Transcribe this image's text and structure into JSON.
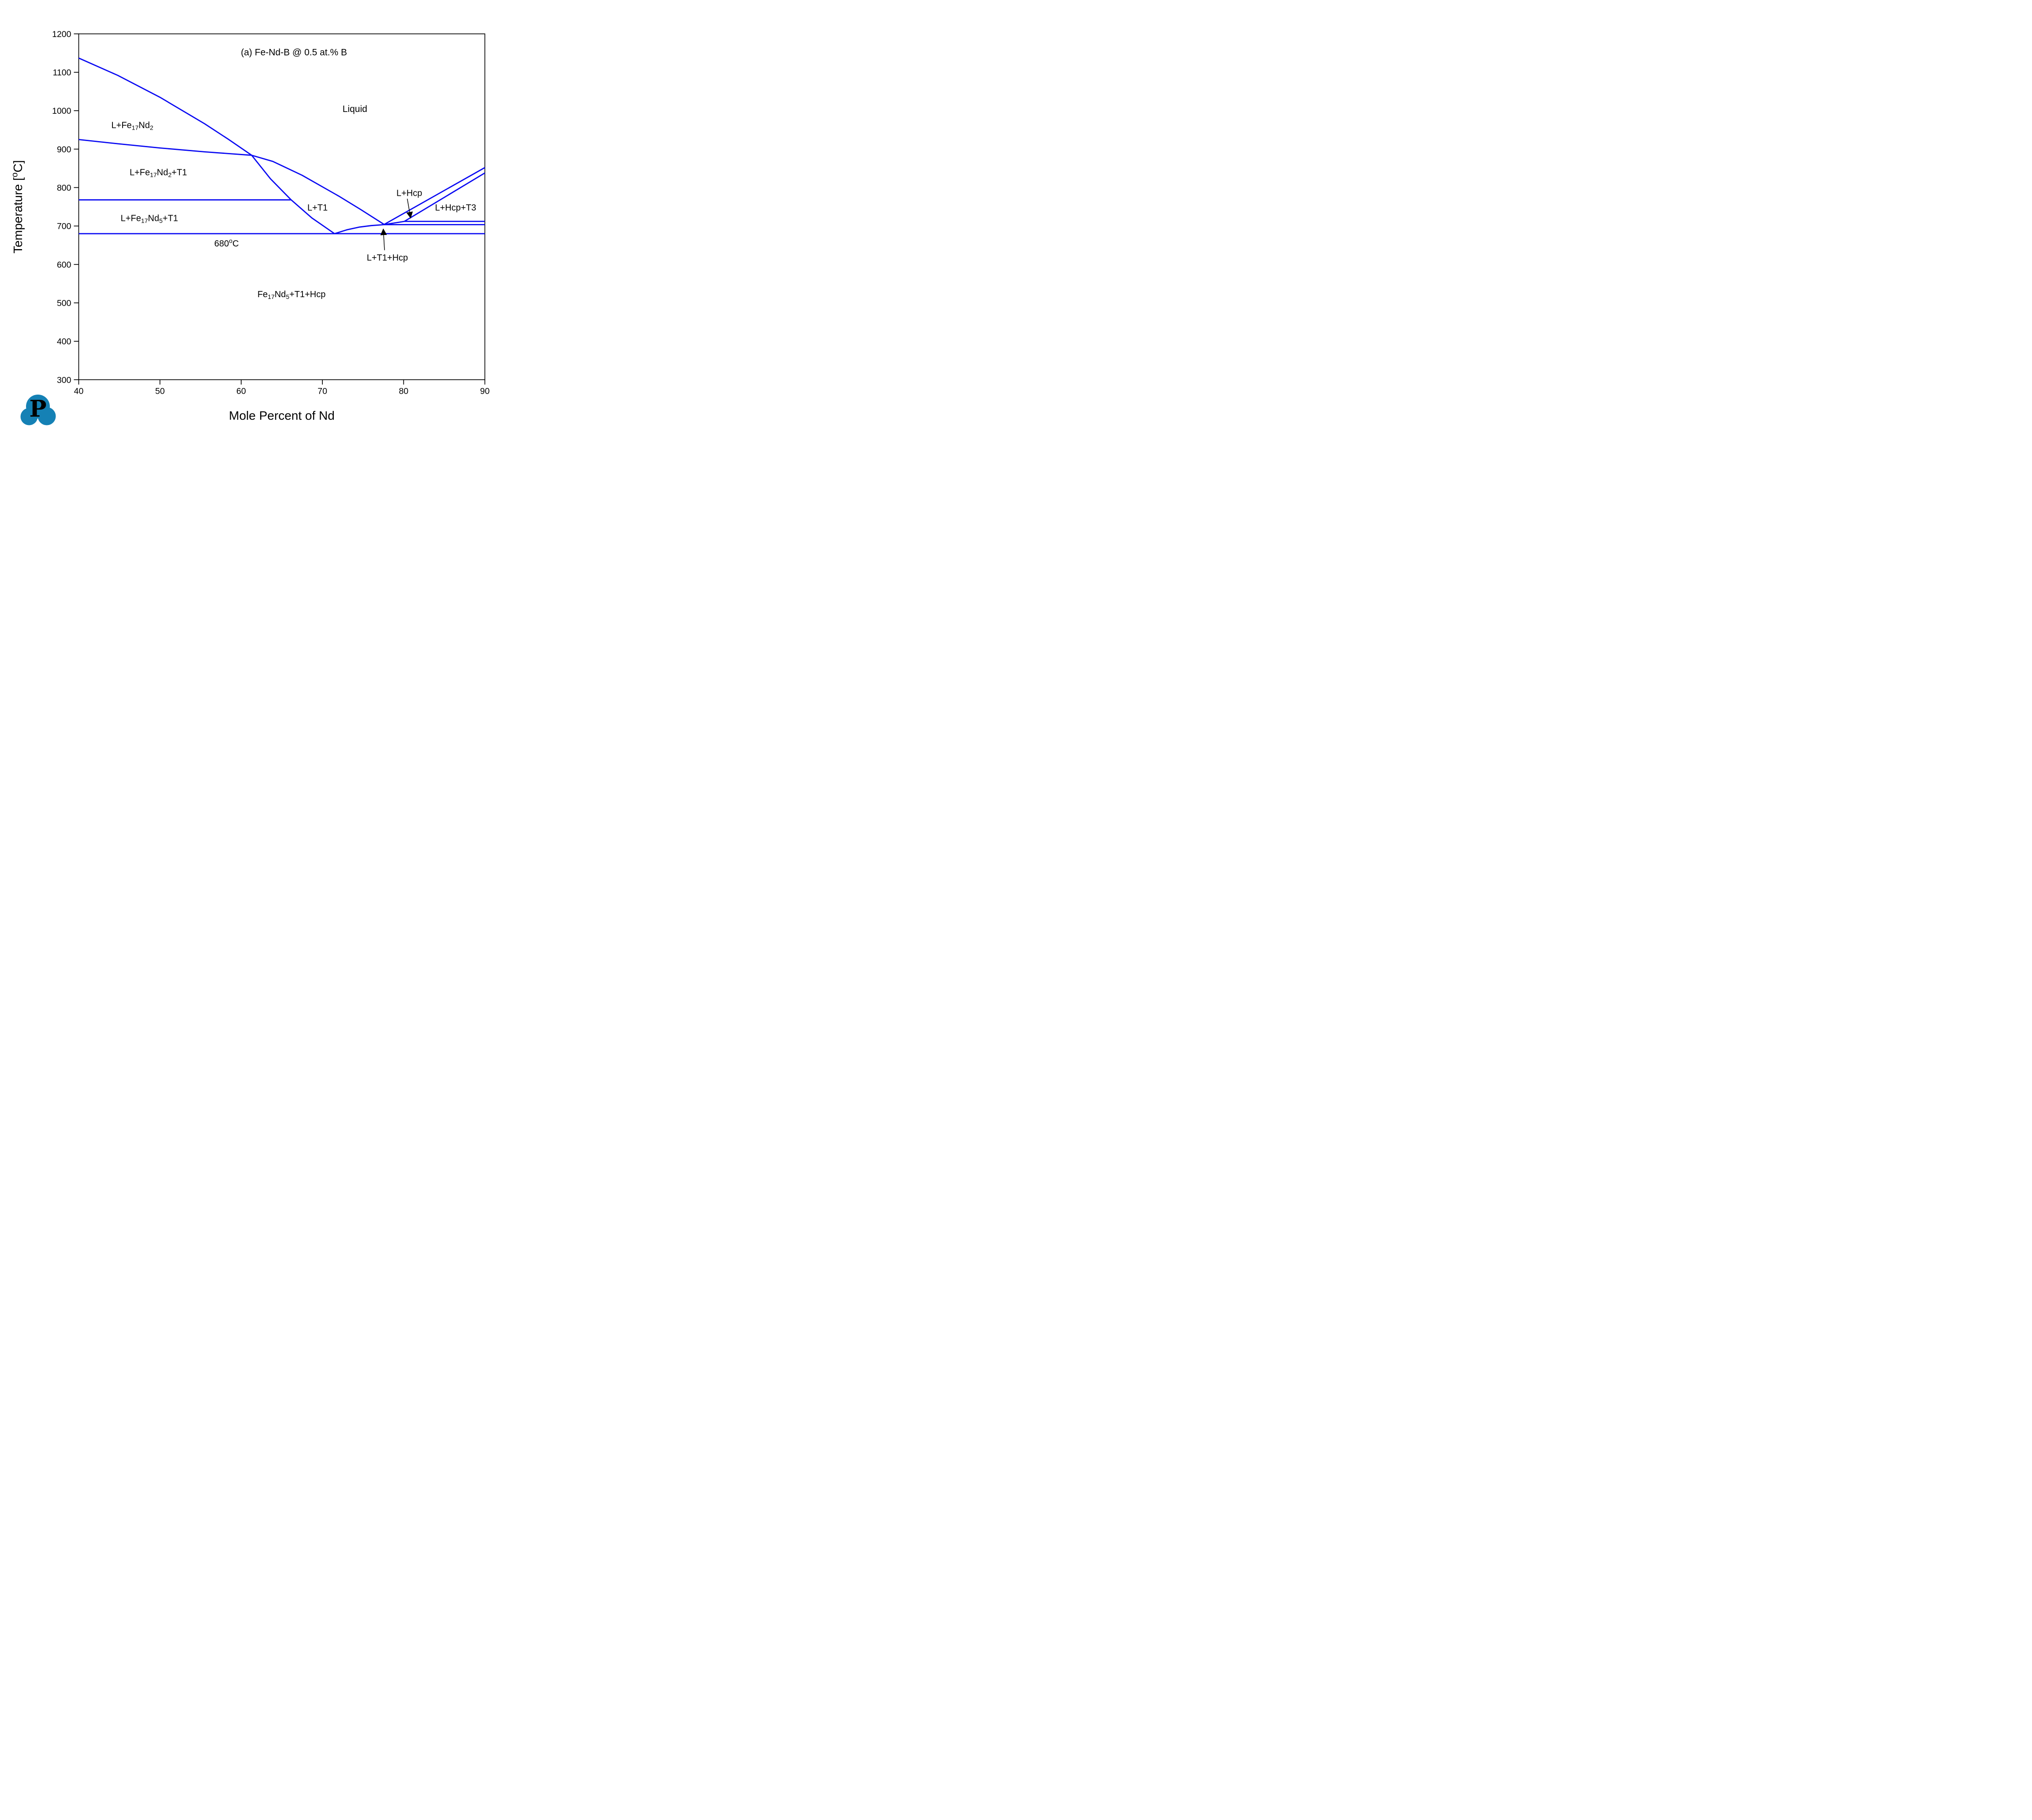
{
  "logo": {
    "letter": "P",
    "color": "#1581b5"
  },
  "colors": {
    "line": "#0a0af2",
    "annotation_red": "#fb1505",
    "axis": "#000000",
    "text": "#000000",
    "background": "#ffffff"
  },
  "chart_data": {
    "type": "line",
    "title": "(a) Fe-Nd-B @ 0.5 at.% B",
    "title_pos": [
      66.5,
      1152
    ],
    "xlabel": "Mole Percent of Nd",
    "ylabel": "Temperature [^{o}C]",
    "xlim": [
      40,
      90
    ],
    "ylim": [
      300,
      1200
    ],
    "x_ticks": [
      40,
      50,
      60,
      70,
      80,
      90
    ],
    "y_ticks": [
      300,
      400,
      500,
      600,
      700,
      800,
      900,
      1000,
      1100,
      1200
    ],
    "grid": false,
    "legend": "none",
    "series": [
      {
        "name": "liquidus-fe17nd2",
        "points": [
          [
            40,
            1137
          ],
          [
            44.8,
            1092
          ],
          [
            50,
            1035
          ],
          [
            55.5,
            966
          ],
          [
            58.4,
            926
          ],
          [
            61.3,
            884
          ]
        ]
      },
      {
        "name": "fe17nd2-phase-boundary",
        "points": [
          [
            40,
            925
          ],
          [
            44.8,
            914
          ],
          [
            50,
            903
          ],
          [
            55.5,
            893
          ],
          [
            61.3,
            884
          ]
        ]
      },
      {
        "name": "t1-liquidus-left",
        "points": [
          [
            61.3,
            884
          ],
          [
            63.6,
            823
          ],
          [
            66.1,
            769
          ],
          [
            68.7,
            721
          ],
          [
            71.5,
            680
          ]
        ]
      },
      {
        "name": "t1-liquidus-right",
        "points": [
          [
            61.3,
            884
          ],
          [
            63.9,
            868
          ],
          [
            67.5,
            832
          ],
          [
            72,
            778
          ],
          [
            74.7,
            743
          ],
          [
            77.6,
            704
          ]
        ]
      },
      {
        "name": "eutectic-to-peritectic-liquidus",
        "points": [
          [
            71.5,
            680
          ],
          [
            73,
            690
          ],
          [
            74.5,
            697
          ],
          [
            76,
            701
          ],
          [
            77.6,
            703.5
          ]
        ]
      },
      {
        "name": "hcp-liquidus-upper",
        "points": [
          [
            77.6,
            704
          ],
          [
            90,
            852
          ]
        ]
      },
      {
        "name": "hcp-solvus-rise",
        "points": [
          [
            77.6,
            703.5
          ],
          [
            80.1,
            712
          ]
        ]
      },
      {
        "name": "hcp-liquidus-lower",
        "points": [
          [
            80.1,
            712
          ],
          [
            90,
            838
          ]
        ]
      },
      {
        "name": "isotherm-712",
        "points": [
          [
            80.1,
            712
          ],
          [
            90,
            712
          ]
        ]
      },
      {
        "name": "isotherm-703",
        "points": [
          [
            77.6,
            703.5
          ],
          [
            90,
            703.5
          ]
        ]
      },
      {
        "name": "isotherm-768",
        "points": [
          [
            40,
            768
          ],
          [
            66.1,
            768
          ]
        ]
      },
      {
        "name": "isotherm-680",
        "points": [
          [
            40,
            680
          ],
          [
            90,
            680
          ]
        ]
      }
    ],
    "annotations": [
      {
        "name": "region-liquid",
        "text": "Liquid",
        "x": 74.0,
        "y": 1005,
        "size": 21
      },
      {
        "name": "region-l-fe17nd2",
        "text": "L+Fe_{17}Nd_{2}",
        "x": 46.6,
        "y": 963,
        "size": 20
      },
      {
        "name": "region-l-fe17nd2-t1",
        "text": "L+Fe_{17}Nd_{2}+T1",
        "x": 49.8,
        "y": 840,
        "size": 20
      },
      {
        "name": "region-l-fe17nd5-t1",
        "text": "L+Fe_{17}Nd_{5}+T1",
        "x": 48.7,
        "y": 721,
        "size": 20
      },
      {
        "name": "region-l-t1",
        "text": "L+T1",
        "x": 69.4,
        "y": 748,
        "size": 20
      },
      {
        "name": "isotherm-680-label",
        "text": "680^{o}C",
        "x": 58.2,
        "y": 655,
        "size": 20,
        "color": "#fb1505"
      },
      {
        "name": "region-fe17nd5-t1-hcp",
        "text": "Fe_{17}Nd_{5}+T1+Hcp",
        "x": 66.2,
        "y": 523,
        "size": 20
      },
      {
        "name": "region-l-hcp",
        "text": "L+Hcp",
        "x": 80.7,
        "y": 786,
        "size": 20
      },
      {
        "name": "region-l-hcp-t3",
        "text": "L+Hcp+T3",
        "x": 86.4,
        "y": 748,
        "size": 20
      },
      {
        "name": "region-l-t1-hcp",
        "text": "L+T1+Hcp",
        "x": 78.0,
        "y": 618,
        "size": 20
      }
    ],
    "arrows": [
      {
        "name": "arrow-to-l-hcp-band",
        "x1": 80.45,
        "y1": 771,
        "x2": 80.85,
        "y2": 722
      },
      {
        "name": "arrow-to-l-t1-hcp-band",
        "x1": 77.65,
        "y1": 637,
        "x2": 77.5,
        "y2": 691
      }
    ]
  }
}
